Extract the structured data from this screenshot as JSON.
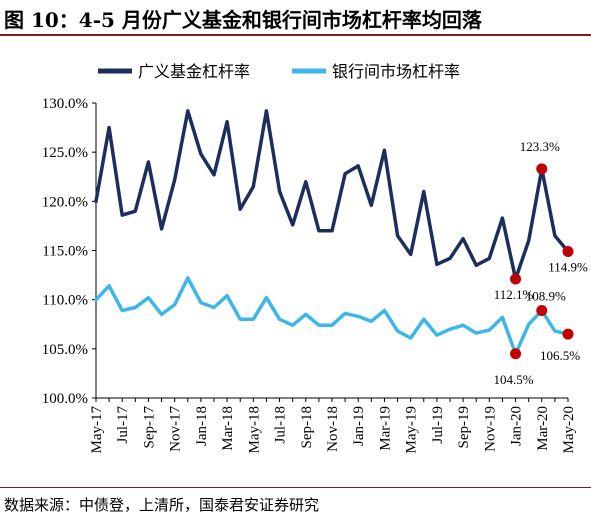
{
  "header": {
    "title": "图 10：4-5 月份广义基金和银行间市场杠杆率均回落"
  },
  "footer": {
    "source": "数据来源：中债登，上清所，国泰君安证券研究"
  },
  "colors": {
    "series_1": "#1c2e5e",
    "series_2": "#3db6e8",
    "highlight": "#c00000",
    "rule": "#8a1a1a"
  },
  "chart_data": {
    "type": "line",
    "title": "",
    "xlabel": "",
    "ylabel": "",
    "ylim": [
      100,
      130
    ],
    "yticks": [
      "100.0%",
      "105.0%",
      "110.0%",
      "115.0%",
      "120.0%",
      "125.0%",
      "130.0%"
    ],
    "xtick_labels": [
      "May-17",
      "Jul-17",
      "Sep-17",
      "Nov-17",
      "Jan-18",
      "Mar-18",
      "May-18",
      "Jul-18",
      "Sep-18",
      "Nov-18",
      "Jan-19",
      "Mar-19",
      "May-19",
      "Jul-19",
      "Sep-19",
      "Nov-19",
      "Jan-20",
      "Mar-20",
      "May-20"
    ],
    "grid": false,
    "legend": "top-left",
    "series": [
      {
        "name": "广义基金杠杆率",
        "values": [
          120.0,
          127.5,
          118.6,
          119.0,
          124.0,
          117.2,
          122.2,
          129.2,
          124.8,
          122.7,
          128.1,
          119.2,
          121.5,
          129.2,
          121.0,
          117.6,
          122.0,
          117.0,
          117.0,
          122.8,
          123.6,
          119.6,
          125.2,
          116.5,
          114.6,
          121.0,
          113.6,
          114.2,
          116.2,
          113.5,
          114.2,
          118.3,
          112.1,
          116.0,
          123.3,
          116.5,
          114.9
        ]
      },
      {
        "name": "银行间市场杠杆率",
        "values": [
          110.0,
          111.4,
          108.9,
          109.2,
          110.2,
          108.5,
          109.5,
          112.2,
          109.7,
          109.2,
          110.4,
          108.0,
          108.0,
          110.2,
          108.0,
          107.4,
          108.5,
          107.4,
          107.4,
          108.6,
          108.3,
          107.8,
          108.9,
          106.8,
          106.1,
          108.0,
          106.4,
          107.0,
          107.4,
          106.6,
          106.9,
          108.2,
          104.5,
          107.5,
          108.9,
          106.8,
          106.5
        ]
      }
    ],
    "annotations": [
      {
        "series": 0,
        "index": 32,
        "label": "112.1%"
      },
      {
        "series": 0,
        "index": 34,
        "label": "123.3%"
      },
      {
        "series": 0,
        "index": 36,
        "label": "114.9%"
      },
      {
        "series": 1,
        "index": 32,
        "label": "104.5%"
      },
      {
        "series": 1,
        "index": 34,
        "label": "108.9%"
      },
      {
        "series": 1,
        "index": 36,
        "label": "106.5%"
      }
    ]
  }
}
